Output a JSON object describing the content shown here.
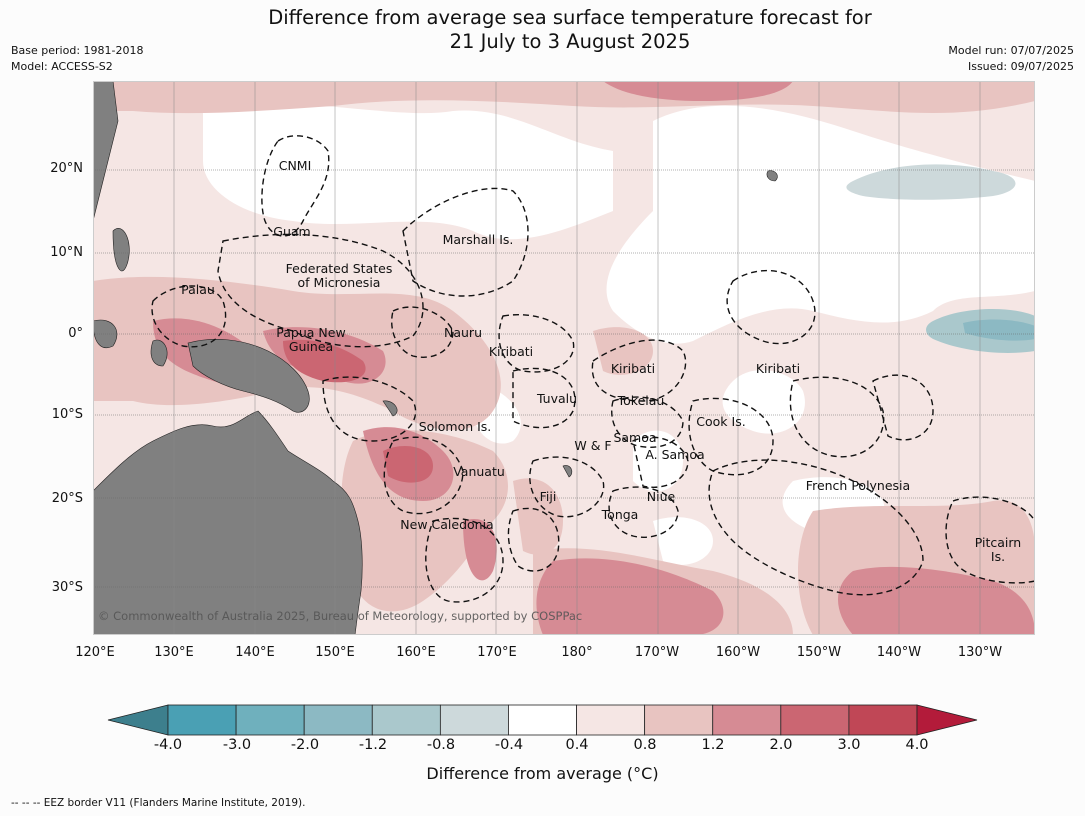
{
  "header": {
    "title_line1": "Difference from average sea surface temperature forecast for",
    "title_line2": "21 July to 3 August 2025",
    "base_period": "Base period: 1981-2018",
    "model": "Model: ACCESS-S2",
    "model_run": "Model run: 07/07/2025",
    "issued": "Issued: 09/07/2025"
  },
  "axes": {
    "lat_labels": [
      "20°N",
      "10°N",
      "0°",
      "10°S",
      "20°S",
      "30°S"
    ],
    "lon_labels": [
      "120°E",
      "130°E",
      "140°E",
      "150°E",
      "160°E",
      "170°E",
      "180°",
      "170°W",
      "160°W",
      "150°W",
      "140°W",
      "130°W"
    ]
  },
  "regions": {
    "cnmi": "CNMI",
    "guam": "Guam",
    "marshall": "Marshall Is.",
    "fsm_1": "Federated States",
    "fsm_2": "of Micronesia",
    "palau": "Palau",
    "png_1": "Papua New",
    "png_2": "Guinea",
    "nauru": "Nauru",
    "kiribati_w": "Kiribati",
    "kiribati_c": "Kiribati",
    "kiribati_e": "Kiribati",
    "tuvalu": "Tuvalu",
    "tokelau": "Tokelau",
    "cook": "Cook Is.",
    "solomon": "Solomon Is.",
    "samoa": "Samoa",
    "wf": "W & F",
    "asamoa": "A. Samoa",
    "vanuatu": "Vanuatu",
    "fiji": "Fiji",
    "niue": "Niue",
    "tonga": "Tonga",
    "french_poly": "French Polynesia",
    "newcal": "New Caledonia",
    "pitcairn_1": "Pitcairn",
    "pitcairn_2": "Is."
  },
  "copyright": "© Commonwealth of Australia 2025, Bureau of Meteorology, supported by COSPPac",
  "colorbar": {
    "title": "Difference from average (°C)",
    "ticks": [
      "-4.0",
      "-3.0",
      "-2.0",
      "-1.2",
      "-0.8",
      "-0.4",
      "0.4",
      "0.8",
      "1.2",
      "2.0",
      "3.0",
      "4.0"
    ],
    "colors": [
      "#4aa0b4",
      "#6fb0bd",
      "#8cb9c3",
      "#aac8cc",
      "#cdd9db",
      "#ffffff",
      "#f5e6e4",
      "#e8c4c1",
      "#d68b94",
      "#cb6672",
      "#c04756"
    ],
    "under_color": "#3d7f8d",
    "over_color": "#b31b3a"
  },
  "footnote": "--  --  -- EEZ border V11 (Flanders Marine Institute, 2019)."
}
